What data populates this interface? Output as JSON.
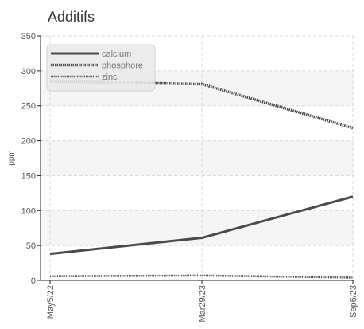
{
  "chart_data": {
    "type": "line",
    "title": "Additifs",
    "xlabel": "",
    "ylabel": "ppm",
    "x": [
      "May5/22",
      "Mar29/23",
      "Sep6/23"
    ],
    "ylim": [
      0,
      350
    ],
    "yticks": [
      0,
      50,
      100,
      150,
      200,
      250,
      300,
      350
    ],
    "grid": true,
    "legend_position": "top-left",
    "series": [
      {
        "name": "calcium",
        "values": [
          38,
          61,
          120
        ],
        "color": "#4a4a4a",
        "style": "solid"
      },
      {
        "name": "phosphore",
        "values": [
          285,
          281,
          218
        ],
        "color": "#4a4a4a",
        "style": "dotted"
      },
      {
        "name": "zinc",
        "values": [
          6,
          7,
          4
        ],
        "color": "#4a4a4a",
        "style": "dotted-thin"
      }
    ]
  }
}
